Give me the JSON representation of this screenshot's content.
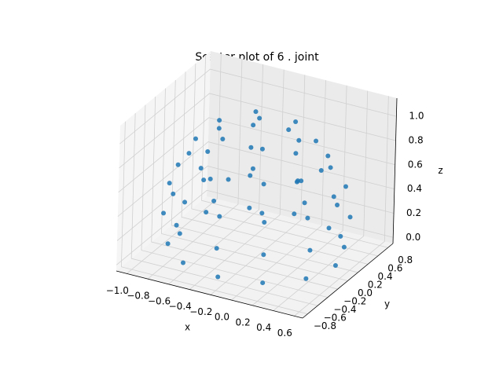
{
  "chart_data": {
    "type": "scatter3d",
    "title": "Scatter plot of 6 . joint",
    "xlabel": "x",
    "ylabel": "y",
    "zlabel": "z",
    "color": "#1f77b4",
    "grid": true,
    "xlim": [
      -1.1,
      0.68
    ],
    "ylim": [
      -0.9,
      0.9
    ],
    "zlim": [
      -0.05,
      1.15
    ],
    "xticks": [
      {
        "value": -1.0,
        "label": "−1.0"
      },
      {
        "value": -0.8,
        "label": "−0.8"
      },
      {
        "value": -0.6,
        "label": "−0.6"
      },
      {
        "value": -0.4,
        "label": "−0.4"
      },
      {
        "value": -0.2,
        "label": "−0.2"
      },
      {
        "value": 0.0,
        "label": "0.0"
      },
      {
        "value": 0.2,
        "label": "0.2"
      },
      {
        "value": 0.4,
        "label": "0.4"
      },
      {
        "value": 0.6,
        "label": "0.6"
      }
    ],
    "yticks": [
      {
        "value": -0.8,
        "label": "−0.8"
      },
      {
        "value": -0.6,
        "label": "−0.6"
      },
      {
        "value": -0.4,
        "label": "−0.4"
      },
      {
        "value": -0.2,
        "label": "−0.2"
      },
      {
        "value": 0.0,
        "label": "0.0"
      },
      {
        "value": 0.2,
        "label": "0.2"
      },
      {
        "value": 0.4,
        "label": "0.4"
      },
      {
        "value": 0.6,
        "label": "0.6"
      },
      {
        "value": 0.8,
        "label": "0.8"
      }
    ],
    "zticks": [
      {
        "value": 0.0,
        "label": "0.0"
      },
      {
        "value": 0.2,
        "label": "0.2"
      },
      {
        "value": 0.4,
        "label": "0.4"
      },
      {
        "value": 0.6,
        "label": "0.6"
      },
      {
        "value": 0.8,
        "label": "0.8"
      },
      {
        "value": 1.0,
        "label": "1.0"
      }
    ],
    "x": [
      0.56,
      0.46,
      0.18,
      -0.2,
      -0.58,
      -0.86,
      -0.96,
      -0.86,
      -0.58,
      -0.2,
      0.18,
      0.46,
      0.6,
      0.5,
      0.2,
      -0.2,
      -0.6,
      -0.9,
      -1.0,
      -0.9,
      -0.6,
      -0.2,
      0.2,
      0.5,
      0.56,
      0.46,
      0.18,
      -0.2,
      -0.58,
      -0.86,
      -0.96,
      -0.86,
      -0.58,
      -0.2,
      0.18,
      0.46,
      0.4,
      0.32,
      0.1,
      -0.2,
      -0.5,
      -0.72,
      -0.8,
      -0.72,
      -0.5,
      -0.2,
      0.1,
      0.32,
      0.18,
      -0.01,
      -0.39,
      -0.58,
      -0.39,
      -0.01,
      -0.2,
      0.25,
      0.03,
      -0.43,
      -0.65,
      -0.43,
      0.03
    ],
    "y": [
      0,
      0.38,
      0.66,
      0.76,
      0.66,
      0.38,
      0,
      -0.38,
      -0.66,
      -0.76,
      -0.66,
      -0.38,
      0,
      0.4,
      0.7,
      0.8,
      0.7,
      0.4,
      0,
      -0.4,
      -0.7,
      -0.8,
      -0.7,
      -0.4,
      0,
      0.38,
      0.66,
      0.76,
      0.66,
      0.38,
      0,
      -0.38,
      -0.66,
      -0.76,
      -0.66,
      -0.38,
      0,
      0.3,
      0.52,
      0.6,
      0.52,
      0.3,
      0,
      -0.3,
      -0.52,
      -0.6,
      -0.52,
      -0.3,
      0,
      0.33,
      0.33,
      0,
      -0.33,
      -0.33,
      0,
      0,
      0.39,
      0.39,
      0,
      -0.39,
      -0.39
    ],
    "z": [
      0.05,
      0.05,
      0.05,
      0.05,
      0.05,
      0.05,
      0.05,
      0.05,
      0.05,
      0.05,
      0.05,
      0.05,
      0.3,
      0.3,
      0.3,
      0.3,
      0.3,
      0.3,
      0.3,
      0.3,
      0.3,
      0.3,
      0.3,
      0.3,
      0.55,
      0.55,
      0.55,
      0.55,
      0.55,
      0.55,
      0.55,
      0.55,
      0.55,
      0.55,
      0.55,
      0.55,
      0.8,
      0.8,
      0.8,
      0.8,
      0.8,
      0.8,
      0.8,
      0.8,
      0.8,
      0.8,
      0.8,
      0.8,
      1.0,
      1.0,
      1.0,
      1.0,
      1.0,
      1.0,
      1.1,
      0.5,
      0.5,
      0.5,
      0.5,
      0.5,
      0.5
    ]
  }
}
